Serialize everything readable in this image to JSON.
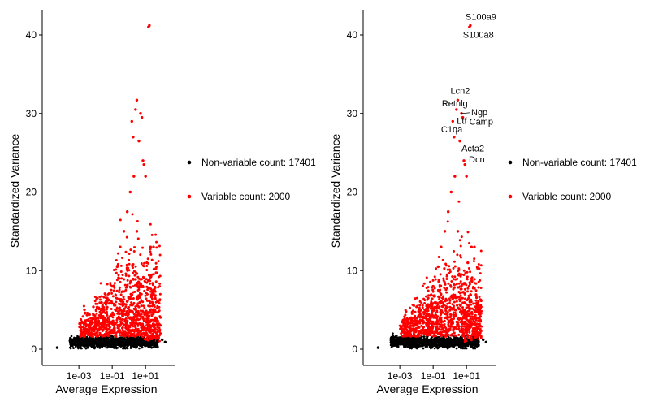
{
  "chart_data": [
    {
      "type": "scatter",
      "xlabel": "Average Expression",
      "ylabel": "Standardized Variance",
      "x_scale": "log10",
      "x_ticks": [
        "1e-03",
        "1e-01",
        "1e+01"
      ],
      "y_ticks": [
        "0",
        "10",
        "20",
        "30",
        "40"
      ],
      "ylim": [
        0,
        42
      ],
      "legend_position": "right",
      "series": [
        {
          "name": "Non-variable count: 17401",
          "color": "#000000",
          "points": [
            [
              5e-05,
              0.2
            ],
            [
              0.0003,
              1.1
            ],
            [
              0.0006,
              1.0
            ],
            [
              0.001,
              1.2
            ],
            [
              0.002,
              1.1
            ],
            [
              0.004,
              1.3
            ],
            [
              0.008,
              1.2
            ],
            [
              0.015,
              1.0
            ],
            [
              0.03,
              1.2
            ],
            [
              0.06,
              1.1
            ],
            [
              0.1,
              1.0
            ],
            [
              0.2,
              1.2
            ],
            [
              0.4,
              0.9
            ],
            [
              0.8,
              0.8
            ],
            [
              1.5,
              0.7
            ],
            [
              3,
              0.6
            ],
            [
              6,
              0.6
            ],
            [
              12,
              0.5
            ],
            [
              25,
              0.8
            ],
            [
              50,
              1.0
            ],
            [
              100,
              1.2
            ],
            [
              150,
              0.9
            ]
          ]
        },
        {
          "name": "Variable count: 2000",
          "color": "#ff0000",
          "points": [
            [
              0.002,
              2.2
            ],
            [
              0.01,
              3.1
            ],
            [
              0.03,
              4.0
            ],
            [
              0.05,
              6.5
            ],
            [
              0.1,
              8.0
            ],
            [
              0.2,
              10.5
            ],
            [
              0.3,
              13.0
            ],
            [
              0.5,
              15.0
            ],
            [
              0.8,
              17.5
            ],
            [
              1.2,
              20.0
            ],
            [
              2,
              22.0
            ],
            [
              1.5,
              29.0
            ],
            [
              3,
              31.7
            ],
            [
              2.5,
              30.5
            ],
            [
              1.8,
              27.0
            ],
            [
              4,
              26.5
            ],
            [
              5,
              30.0
            ],
            [
              6,
              29.5
            ],
            [
              7,
              24.0
            ],
            [
              8,
              23.5
            ],
            [
              10,
              22.0
            ],
            [
              15,
              41.0
            ],
            [
              17,
              41.2
            ],
            [
              20,
              13.0
            ],
            [
              30,
              13.0
            ],
            [
              40,
              4.0
            ],
            [
              12,
              11.0
            ],
            [
              3,
              15.0
            ],
            [
              5,
              8.0
            ]
          ]
        }
      ]
    },
    {
      "type": "scatter",
      "xlabel": "Average Expression",
      "ylabel": "Standardized Variance",
      "x_scale": "log10",
      "x_ticks": [
        "1e-03",
        "1e-01",
        "1e+01"
      ],
      "y_ticks": [
        "0",
        "10",
        "20",
        "30",
        "40"
      ],
      "ylim": [
        0,
        42
      ],
      "legend_position": "right",
      "series": [
        {
          "name": "Non-variable count: 17401",
          "color": "#000000",
          "points": [
            [
              5e-05,
              0.2
            ],
            [
              0.0003,
              1.1
            ],
            [
              0.0006,
              1.0
            ],
            [
              0.001,
              1.2
            ],
            [
              0.002,
              1.1
            ],
            [
              0.004,
              1.3
            ],
            [
              0.008,
              1.2
            ],
            [
              0.015,
              1.0
            ],
            [
              0.03,
              1.2
            ],
            [
              0.06,
              1.1
            ],
            [
              0.1,
              1.0
            ],
            [
              0.2,
              1.2
            ],
            [
              0.4,
              0.9
            ],
            [
              0.8,
              0.8
            ],
            [
              1.5,
              0.7
            ],
            [
              3,
              0.6
            ],
            [
              6,
              0.6
            ],
            [
              12,
              0.5
            ],
            [
              25,
              0.8
            ],
            [
              50,
              1.0
            ],
            [
              100,
              1.2
            ],
            [
              150,
              0.9
            ]
          ]
        },
        {
          "name": "Variable count: 2000",
          "color": "#ff0000",
          "points": [
            [
              0.002,
              2.2
            ],
            [
              0.01,
              3.1
            ],
            [
              0.03,
              4.0
            ],
            [
              0.05,
              6.5
            ],
            [
              0.1,
              8.0
            ],
            [
              0.2,
              10.5
            ],
            [
              0.3,
              13.0
            ],
            [
              0.5,
              15.0
            ],
            [
              0.8,
              17.5
            ],
            [
              1.2,
              20.0
            ],
            [
              2,
              22.0
            ],
            [
              1.5,
              29.0
            ],
            [
              3,
              31.7
            ],
            [
              2.5,
              30.5
            ],
            [
              1.8,
              27.0
            ],
            [
              4,
              26.5
            ],
            [
              5,
              30.0
            ],
            [
              6,
              29.5
            ],
            [
              7,
              24.0
            ],
            [
              8,
              23.5
            ],
            [
              10,
              22.0
            ],
            [
              15,
              41.0
            ],
            [
              17,
              41.2
            ],
            [
              20,
              13.0
            ],
            [
              30,
              13.0
            ],
            [
              40,
              4.0
            ],
            [
              12,
              11.0
            ],
            [
              3,
              15.0
            ],
            [
              5,
              8.0
            ]
          ]
        }
      ],
      "annotations": [
        {
          "text": "S100a9",
          "x": 17,
          "y": 41.2
        },
        {
          "text": "S100a8",
          "x": 15,
          "y": 41.0
        },
        {
          "text": "Lcn2",
          "x": 3,
          "y": 31.7
        },
        {
          "text": "Retnlg",
          "x": 2.5,
          "y": 30.5
        },
        {
          "text": "Ngp",
          "x": 5,
          "y": 30.0
        },
        {
          "text": "Camp",
          "x": 6,
          "y": 29.5
        },
        {
          "text": "Ltf",
          "x": 1.5,
          "y": 29.0
        },
        {
          "text": "C1qa",
          "x": 1.8,
          "y": 27.0
        },
        {
          "text": "Acta2",
          "x": 4,
          "y": 26.5
        },
        {
          "text": "Dcn",
          "x": 7,
          "y": 24.0
        }
      ]
    }
  ]
}
